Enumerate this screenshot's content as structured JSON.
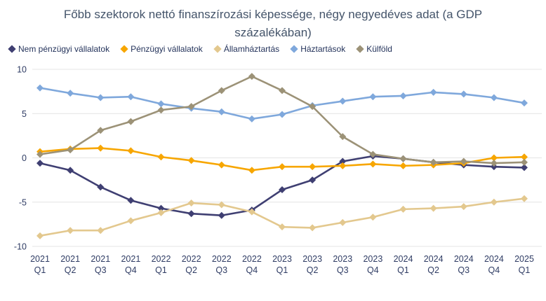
{
  "title": "Főbb szektorok nettó finanszírozási képessége, négy negyedéves adat (a GDP százalékában)",
  "colors": {
    "background": "#FFFFFF",
    "title_text": "#44546A",
    "axis_text": "#2F3C64",
    "legend_text": "#24335B",
    "gridline": "#E4E4E4"
  },
  "chart_data": {
    "type": "line",
    "marker": "diamond",
    "grid": true,
    "legend_position": "top-left",
    "ylim": [
      -10,
      10
    ],
    "yticks": [
      10,
      5,
      0,
      -5,
      -10
    ],
    "categories": [
      "2021 Q1",
      "2021 Q2",
      "2021 Q3",
      "2021 Q4",
      "2022 Q1",
      "2022 Q2",
      "2022 Q3",
      "2022 Q4",
      "2023 Q1",
      "2023 Q2",
      "2023 Q3",
      "2023 Q4",
      "2024 Q1",
      "2024 Q2",
      "2024 Q3",
      "2024 Q4",
      "2025 Q1"
    ],
    "series": [
      {
        "name": "Nem pénzügyi vállalatok",
        "color": "#3F3F72",
        "values": [
          -0.6,
          -1.4,
          -3.3,
          -4.8,
          -5.7,
          -6.3,
          -6.5,
          -5.9,
          -3.6,
          -2.5,
          -0.4,
          0.2,
          -0.1,
          -0.5,
          -0.8,
          -1.0,
          -1.1
        ]
      },
      {
        "name": "Pénzügyi vállalatok",
        "color": "#F7A600",
        "values": [
          0.7,
          1.0,
          1.1,
          0.8,
          0.1,
          -0.3,
          -0.8,
          -1.4,
          -1.0,
          -1.0,
          -0.9,
          -0.7,
          -0.9,
          -0.8,
          -0.6,
          0.0,
          0.1
        ]
      },
      {
        "name": "Államháztartás",
        "color": "#E3C88E",
        "values": [
          -8.8,
          -8.2,
          -8.2,
          -7.1,
          -6.2,
          -5.1,
          -5.3,
          -6.1,
          -7.8,
          -7.9,
          -7.3,
          -6.7,
          -5.8,
          -5.7,
          -5.5,
          -5.0,
          -4.6
        ]
      },
      {
        "name": "Háztartások",
        "color": "#7FA8DC",
        "values": [
          7.9,
          7.3,
          6.8,
          6.9,
          6.1,
          5.6,
          5.2,
          4.4,
          4.9,
          5.9,
          6.4,
          6.9,
          7.0,
          7.4,
          7.2,
          6.8,
          6.2
        ]
      },
      {
        "name": "Külföld",
        "color": "#9C9277",
        "values": [
          0.4,
          0.9,
          3.1,
          4.1,
          5.4,
          5.8,
          7.6,
          9.2,
          7.6,
          5.8,
          2.4,
          0.4,
          -0.1,
          -0.5,
          -0.4,
          -0.6,
          -0.5
        ]
      }
    ]
  }
}
